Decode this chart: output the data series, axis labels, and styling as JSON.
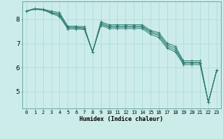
{
  "xlabel": "Humidex (Indice chaleur)",
  "x_values": [
    0,
    1,
    2,
    3,
    4,
    5,
    6,
    7,
    8,
    9,
    10,
    11,
    12,
    13,
    14,
    15,
    16,
    17,
    18,
    19,
    20,
    21,
    22,
    23
  ],
  "series": [
    [
      8.35,
      8.45,
      8.42,
      8.35,
      8.28,
      7.72,
      7.72,
      7.7,
      6.65,
      7.9,
      7.78,
      7.78,
      7.78,
      7.78,
      7.78,
      7.55,
      7.45,
      7.02,
      6.88,
      6.28,
      6.28,
      6.28,
      4.55,
      5.88
    ],
    [
      8.35,
      8.45,
      8.42,
      8.3,
      8.22,
      7.68,
      7.68,
      7.65,
      6.65,
      7.85,
      7.72,
      7.72,
      7.72,
      7.72,
      7.72,
      7.5,
      7.38,
      6.95,
      6.8,
      6.22,
      6.22,
      6.22,
      4.55,
      5.88
    ],
    [
      8.35,
      8.42,
      8.4,
      8.28,
      8.18,
      7.65,
      7.65,
      7.62,
      6.65,
      7.8,
      7.68,
      7.68,
      7.68,
      7.68,
      7.68,
      7.45,
      7.32,
      6.88,
      6.72,
      6.18,
      6.18,
      6.18,
      4.55,
      5.88
    ],
    [
      8.35,
      8.42,
      8.4,
      8.25,
      8.12,
      7.6,
      7.6,
      7.58,
      6.65,
      7.75,
      7.62,
      7.62,
      7.62,
      7.62,
      7.62,
      7.38,
      7.25,
      6.8,
      6.65,
      6.12,
      6.12,
      6.12,
      4.55,
      5.88
    ]
  ],
  "line_color": "#2e7d72",
  "bg_color": "#ccecea",
  "grid_color": "#a8d8d4",
  "ylim_bottom": 4.3,
  "ylim_top": 8.75,
  "yticks": [
    5,
    6,
    7,
    8
  ],
  "xticks": [
    0,
    1,
    2,
    3,
    4,
    5,
    6,
    7,
    8,
    9,
    10,
    11,
    12,
    13,
    14,
    15,
    16,
    17,
    18,
    19,
    20,
    21,
    22,
    23
  ],
  "tick_fontsize": 5.0,
  "xlabel_fontsize": 6.0
}
